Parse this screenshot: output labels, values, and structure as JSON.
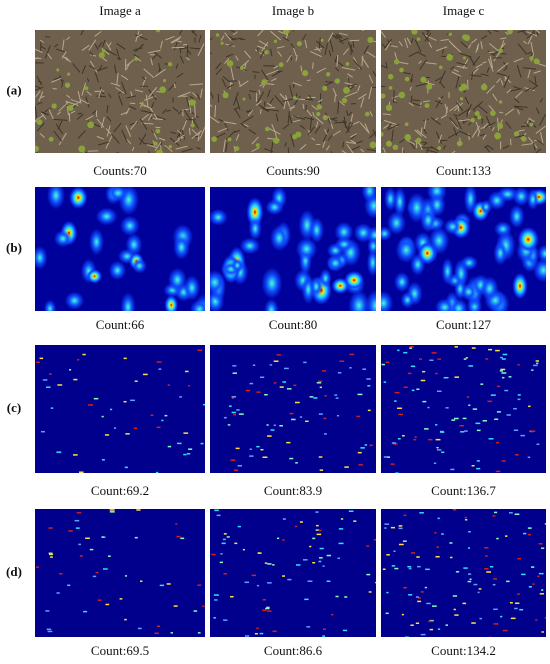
{
  "columns": [
    "Image a",
    "Image b",
    "Image c"
  ],
  "rows": [
    {
      "label": "(a)",
      "captions": [
        "Counts:70",
        "Counts:90",
        "Count:133"
      ]
    },
    {
      "label": "(b)",
      "captions": [
        "Count:66",
        "Count:80",
        "Count:127"
      ]
    },
    {
      "label": "(c)",
      "captions": [
        "Count:69.2",
        "Count:83.9",
        "Count:136.7"
      ]
    },
    {
      "label": "(d)",
      "captions": [
        "Count:69.5",
        "Count:86.6",
        "Count:134.2"
      ]
    }
  ]
}
